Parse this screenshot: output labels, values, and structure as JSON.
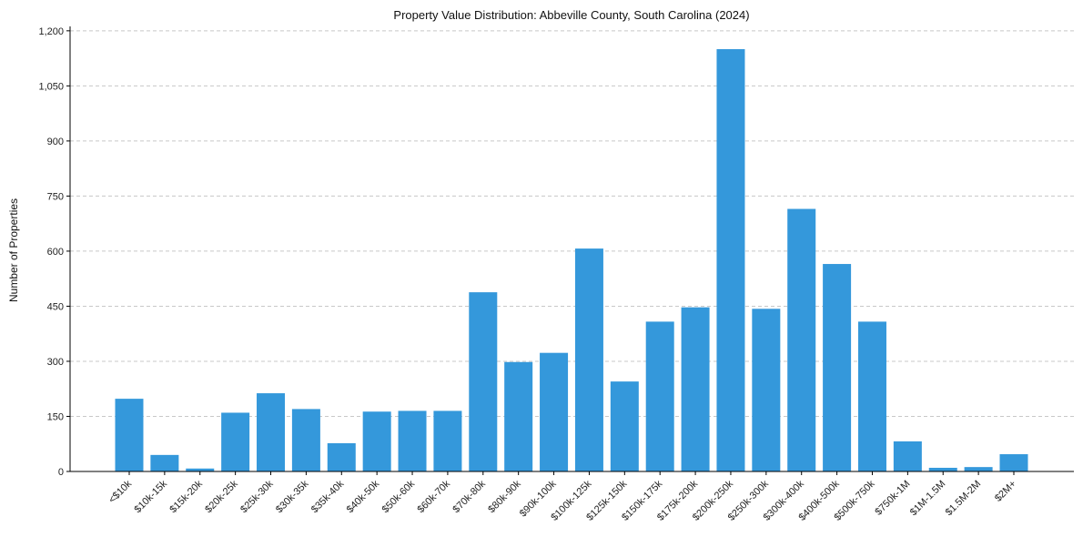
{
  "chart_data": {
    "type": "bar",
    "title": "Property Value Distribution: Abbeville County, South Carolina (2024)",
    "xlabel": "",
    "ylabel": "Number of Properties",
    "ylim": [
      0,
      1200
    ],
    "yticks": [
      0,
      150,
      300,
      450,
      600,
      750,
      900,
      1050,
      1200
    ],
    "ytick_labels": [
      "0",
      "150",
      "300",
      "450",
      "600",
      "750",
      "900",
      "1,050",
      "1,200"
    ],
    "grid": "y-dashed",
    "bar_color": "#3498db",
    "categories": [
      "<$10k",
      "$10k-15k",
      "$15k-20k",
      "$20k-25k",
      "$25k-30k",
      "$30k-35k",
      "$35k-40k",
      "$40k-50k",
      "$50k-60k",
      "$60k-70k",
      "$70k-80k",
      "$80k-90k",
      "$90k-100k",
      "$100k-125k",
      "$125k-150k",
      "$150k-175k",
      "$175k-200k",
      "$200k-250k",
      "$250k-300k",
      "$300k-400k",
      "$400k-500k",
      "$500k-750k",
      "$750k-1M",
      "$1M-1.5M",
      "$1.5M-2M",
      "$2M+"
    ],
    "values": [
      198,
      45,
      8,
      160,
      213,
      170,
      77,
      163,
      165,
      165,
      488,
      298,
      323,
      607,
      245,
      408,
      447,
      1150,
      443,
      715,
      565,
      408,
      82,
      10,
      12,
      47
    ]
  }
}
